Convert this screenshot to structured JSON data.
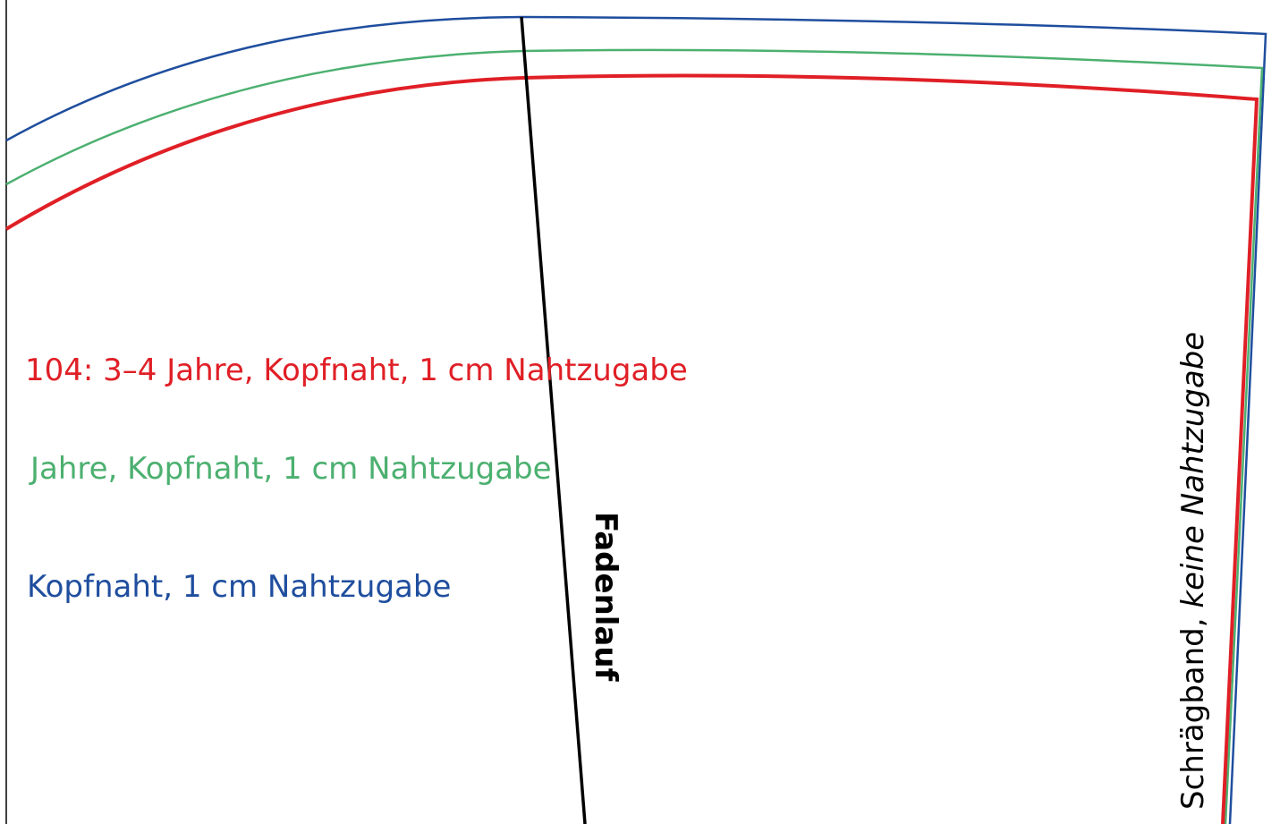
{
  "labels": {
    "red": "104: 3–4 Jahre, Kopfnaht, 1 cm Nahtzugabe",
    "green": "Jahre, Kopfnaht, 1 cm Nahtzugabe",
    "blue": "Kopfnaht, 1 cm Nahtzugabe",
    "grain": "Fadenlauf",
    "edge_prefix": "Schrägband, ",
    "edge_italic": "keine Nahtzugabe"
  }
}
